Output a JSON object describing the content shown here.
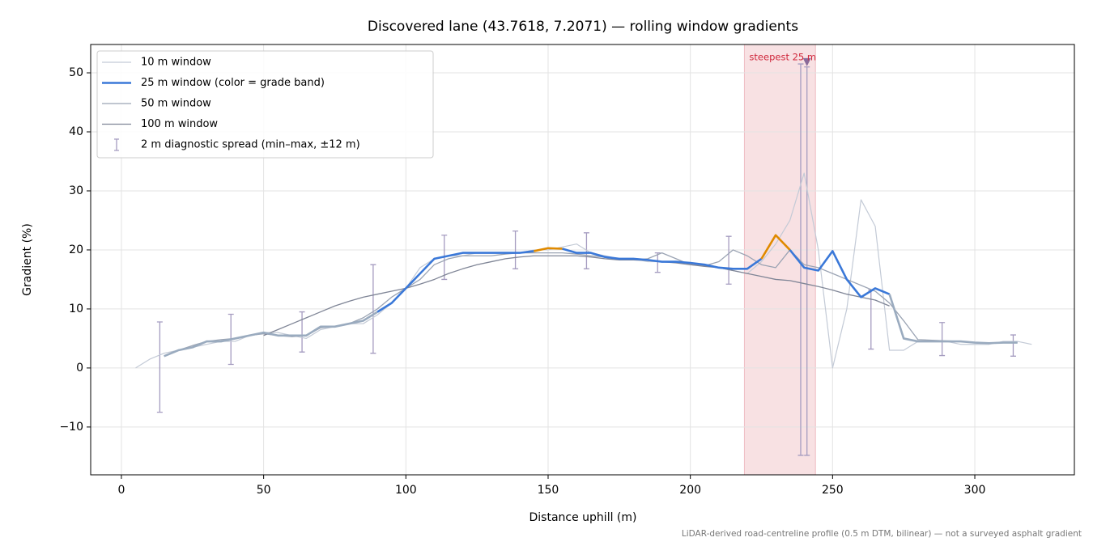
{
  "chart_data": {
    "type": "line",
    "title": "Discovered lane (43.7618, 7.2071) — rolling window gradients",
    "x_label": "Distance uphill (m)",
    "y_label": "Gradient (%)",
    "note": "LiDAR-derived road-centreline profile (0.5 m DTM, bilinear) — not a surveyed asphalt gradient",
    "xlim": [
      -10.8,
      335
    ],
    "ylim": [
      -18.1,
      54.8
    ],
    "xticks": [
      0,
      50,
      100,
      150,
      200,
      250,
      300
    ],
    "yticks": [
      {
        "value": -10,
        "label": "−10"
      },
      0,
      10,
      20,
      30,
      40,
      50
    ],
    "grid": true,
    "legend": "upper left",
    "x": [
      5,
      10,
      15,
      20,
      25,
      30,
      35,
      40,
      45,
      50,
      55,
      60,
      65,
      70,
      75,
      80,
      85,
      90,
      95,
      100,
      105,
      110,
      115,
      120,
      125,
      130,
      135,
      140,
      145,
      150,
      155,
      160,
      165,
      170,
      175,
      180,
      185,
      190,
      195,
      200,
      205,
      210,
      215,
      220,
      225,
      230,
      235,
      240,
      245,
      250,
      255,
      260,
      265,
      270,
      275,
      280,
      285,
      290,
      295,
      300,
      305,
      310,
      315,
      320
    ],
    "series": [
      {
        "name": "10 m window",
        "color": "#c3cad6",
        "linewidth": 1.2,
        "values": [
          0,
          1.5,
          2.5,
          3,
          3.5,
          4,
          4.5,
          4.5,
          5.5,
          6,
          6,
          5.5,
          5,
          6.5,
          7,
          7.5,
          7.5,
          9,
          11,
          13.5,
          17,
          18.5,
          19,
          19,
          19.5,
          19.5,
          19.5,
          19.5,
          20,
          20,
          20.5,
          21,
          19.5,
          19,
          18.5,
          18.5,
          18,
          18,
          18,
          17.5,
          17.5,
          17,
          16.5,
          16,
          18,
          21,
          25,
          33,
          20,
          0,
          10,
          28.5,
          24,
          3,
          3,
          4.5,
          4.5,
          4.5,
          4,
          4,
          4,
          4.5,
          4.5,
          4
        ]
      },
      {
        "name": "25 m window (color = grade band)",
        "color": "#3a78d8",
        "linewidth": 2.6,
        "bands": [
          {
            "below": 10,
            "color": "#9aabbf"
          },
          {
            "below": 20,
            "color": "#3a78d8"
          },
          {
            "color": "#e08a00"
          }
        ],
        "values": [
          null,
          null,
          2,
          3,
          3.5,
          4.5,
          4.5,
          5,
          5.5,
          6,
          5.5,
          5.5,
          5.5,
          7,
          7,
          7.5,
          8,
          9.5,
          11,
          13.5,
          16,
          18.5,
          19,
          19.5,
          19.5,
          19.5,
          19.5,
          19.5,
          19.8,
          20.3,
          20.2,
          19.5,
          19.5,
          18.8,
          18.5,
          18.5,
          18.3,
          18,
          18,
          17.8,
          17.5,
          17,
          16.8,
          16.8,
          18.5,
          22.5,
          20,
          17,
          16.5,
          19.8,
          15,
          12,
          13.5,
          12.5,
          5,
          4.5,
          4.5,
          4.5,
          4.5,
          4.3,
          4.2,
          4.3,
          4.3,
          null
        ]
      },
      {
        "name": "50 m window",
        "color": "#9aa3b3",
        "linewidth": 1.3,
        "values": [
          null,
          null,
          2,
          3,
          3.8,
          4.5,
          4.8,
          5,
          5.5,
          5.8,
          5.5,
          5.3,
          5.5,
          6.8,
          7,
          7.5,
          8.5,
          10,
          12,
          13.5,
          15,
          17.5,
          18.5,
          19,
          19,
          19,
          19.3,
          19.5,
          19.5,
          19.5,
          19.5,
          19.3,
          19,
          18.8,
          18.5,
          18.3,
          18.5,
          19.5,
          18.5,
          17.5,
          17.3,
          18,
          20,
          19,
          17.5,
          17,
          20,
          17.5,
          17,
          16,
          15,
          14,
          13,
          11,
          8,
          4.8,
          4.7,
          4.6,
          4.5,
          4.3,
          4.2,
          4.3,
          4.3,
          null
        ]
      },
      {
        "name": "100 m window",
        "color": "#7f8596",
        "linewidth": 1.3,
        "values": [
          null,
          null,
          null,
          null,
          null,
          null,
          null,
          null,
          null,
          5.5,
          6.5,
          7.5,
          8.5,
          9.5,
          10.5,
          11.3,
          12,
          12.5,
          13,
          13.5,
          14.2,
          15,
          16,
          16.8,
          17.5,
          18,
          18.5,
          18.8,
          19,
          19,
          19,
          19,
          18.8,
          18.5,
          18.3,
          18.3,
          18.2,
          18,
          17.8,
          17.5,
          17.2,
          17,
          16.5,
          16,
          15.5,
          15,
          14.8,
          14.3,
          13.8,
          13.2,
          12.5,
          12,
          11.5,
          10.5,
          null,
          null,
          null,
          null,
          null,
          null,
          null,
          null,
          null,
          null
        ]
      }
    ],
    "errorbars": {
      "name": "2 m diagnostic spread (min–max, ±12 m)",
      "color": "#a59cc0",
      "x": [
        13.5,
        38.5,
        63.5,
        88.5,
        113.5,
        138.5,
        163.5,
        188.5,
        213.5,
        238.8,
        241,
        263.5,
        288.5,
        313.5
      ],
      "low": [
        -7.5,
        0.6,
        2.7,
        2.5,
        15,
        16.8,
        16.8,
        16.2,
        14.2,
        -14.8,
        -14.8,
        3.2,
        2.1,
        2
      ],
      "high": [
        7.8,
        9.1,
        9.5,
        17.5,
        22.5,
        23.2,
        22.9,
        19.5,
        22.3,
        51.5,
        51,
        13.2,
        7.7,
        5.6
      ]
    },
    "highlight": {
      "label": "steepest 25 m",
      "x_range": [
        219,
        244
      ],
      "marker_x": 241,
      "marker_y": 51.8,
      "color": "#d0283c"
    }
  }
}
